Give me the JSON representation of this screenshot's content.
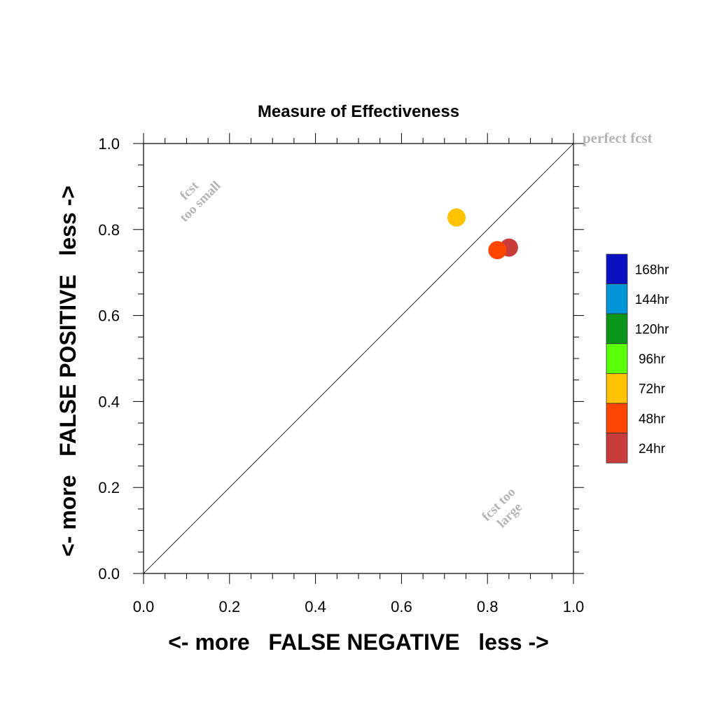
{
  "chart_data": {
    "type": "scatter",
    "title": "Measure of Effectiveness",
    "xlabel": "<- more   FALSE NEGATIVE   less ->",
    "ylabel": "<- more   FALSE POSITIVE   less ->",
    "xlim": [
      0.0,
      1.0
    ],
    "ylim": [
      0.0,
      1.0
    ],
    "x_ticks": [
      "0.0",
      "0.2",
      "0.4",
      "0.6",
      "0.8",
      "1.0"
    ],
    "y_ticks": [
      "0.0",
      "0.2",
      "0.4",
      "0.6",
      "0.8",
      "1.0"
    ],
    "grid": false,
    "diagonal_line": true,
    "annotations": {
      "perfect": "perfect fcst",
      "too_small_line1": "fcst",
      "too_small_line2": "too small",
      "too_large_line1": "fcst too",
      "too_large_line2": "large"
    },
    "legend_position": "right",
    "legend": [
      {
        "label": "168hr",
        "color": "#0a10c0"
      },
      {
        "label": "144hr",
        "color": "#0096d8"
      },
      {
        "label": "120hr",
        "color": "#0a9618"
      },
      {
        "label": "96hr",
        "color": "#5aff0a"
      },
      {
        "label": "72hr",
        "color": "#ffc200"
      },
      {
        "label": "48hr",
        "color": "#ff4600"
      },
      {
        "label": "24hr",
        "color": "#c83c3c"
      }
    ],
    "series": [
      {
        "name": "24hr",
        "x": 0.85,
        "y": 0.758,
        "color": "#c83c3c"
      },
      {
        "name": "72hr",
        "x": 0.728,
        "y": 0.828,
        "color": "#ffc200"
      },
      {
        "name": "48hr",
        "x": 0.823,
        "y": 0.752,
        "color": "#ff4600"
      }
    ]
  }
}
